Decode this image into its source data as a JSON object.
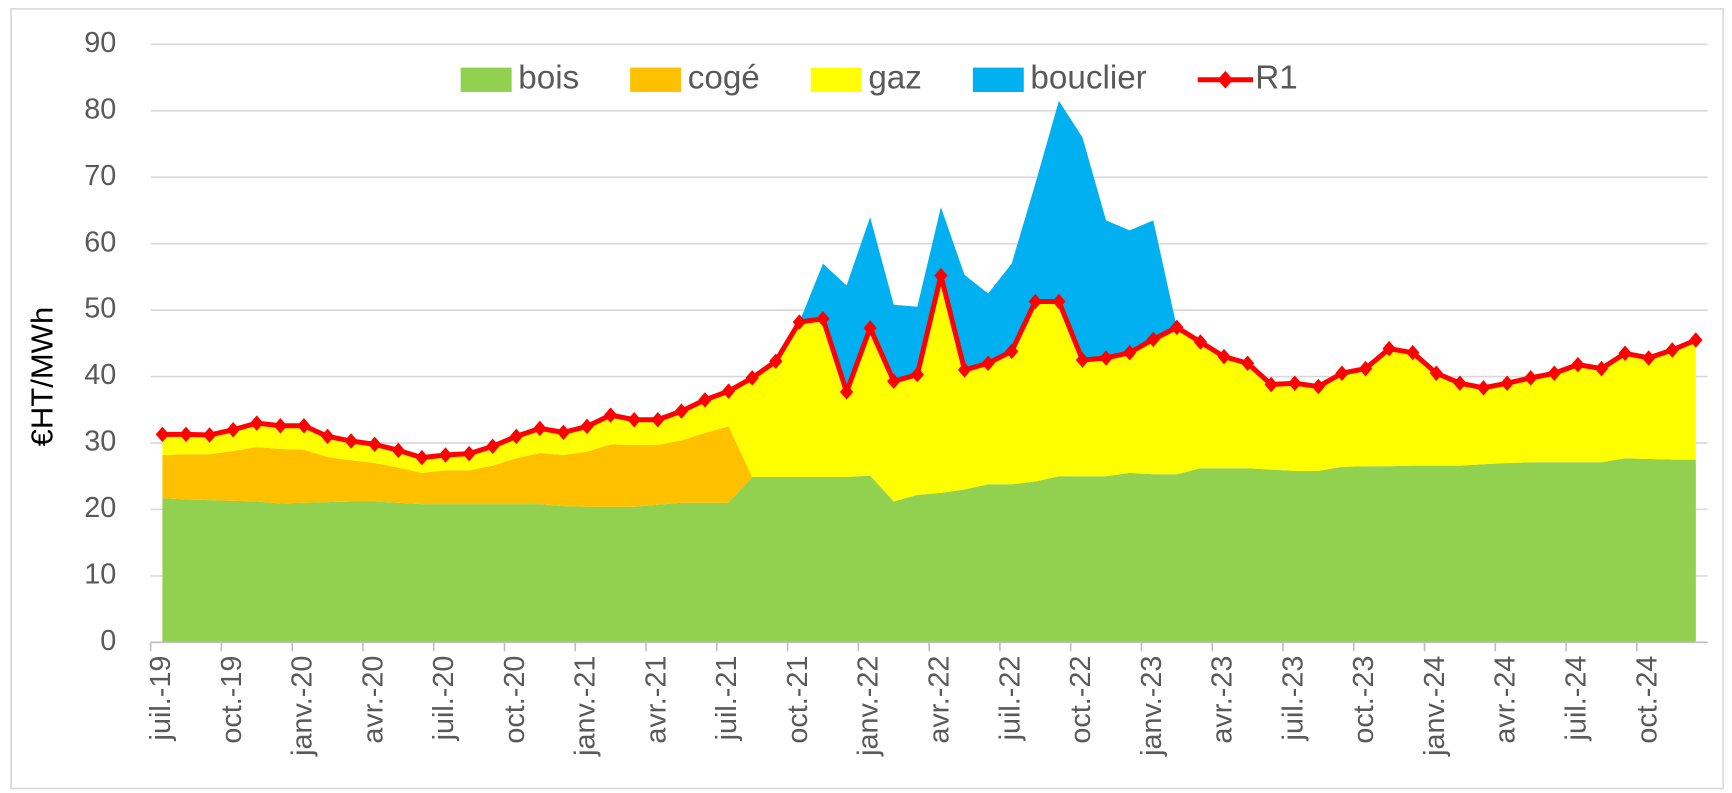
{
  "chart_data": {
    "type": "area",
    "ylabel": "€HT/MWh",
    "categories": [
      "juil.-19",
      null,
      null,
      "oct.-19",
      null,
      null,
      "janv.-20",
      null,
      null,
      "avr.-20",
      null,
      null,
      "juil.-20",
      null,
      null,
      "oct.-20",
      null,
      null,
      "janv.-21",
      null,
      null,
      "avr.-21",
      null,
      null,
      "juil.-21",
      null,
      null,
      "oct.-21",
      null,
      null,
      "janv.-22",
      null,
      null,
      "avr.-22",
      null,
      null,
      "juil.-22",
      null,
      null,
      "oct.-22",
      null,
      null,
      "janv.-23",
      null,
      null,
      "avr.-23",
      null,
      null,
      "juil.-23",
      null,
      null,
      "oct.-23",
      null,
      null,
      "janv.-24",
      null,
      null,
      "avr.-24",
      null,
      null,
      "juil.-24",
      null,
      null,
      "oct.-24",
      null,
      null
    ],
    "series": [
      {
        "name": "bois",
        "color": "#92d050",
        "values": [
          21.7,
          21.5,
          21.4,
          21.3,
          21.2,
          20.9,
          21.0,
          21.1,
          21.2,
          21.2,
          21.0,
          20.8,
          20.8,
          20.8,
          20.8,
          20.8,
          20.8,
          20.5,
          20.4,
          20.4,
          20.4,
          20.7,
          21.0,
          21.0,
          21.0,
          24.9,
          24.9,
          24.9,
          24.9,
          24.9,
          25.1,
          21.2,
          22.2,
          22.5,
          23.0,
          23.8,
          23.8,
          24.2,
          25.0,
          25.0,
          25.0,
          25.5,
          25.3,
          25.3,
          26.2,
          26.2,
          26.2,
          26.0,
          25.8,
          25.8,
          26.4,
          26.5,
          26.5,
          26.6,
          26.6,
          26.6,
          26.8,
          27.0,
          27.1,
          27.1,
          27.1,
          27.1,
          27.7,
          27.6,
          27.5,
          27.5
        ]
      },
      {
        "name": "cogé",
        "color": "#ffc000",
        "values": [
          6.5,
          6.8,
          6.9,
          7.5,
          8.2,
          8.2,
          8.0,
          6.8,
          6.2,
          5.8,
          5.3,
          4.7,
          5.1,
          5.1,
          5.8,
          6.9,
          7.7,
          7.7,
          8.3,
          9.4,
          9.3,
          9.0,
          9.4,
          10.5,
          11.5,
          0,
          0,
          0,
          0,
          0,
          0,
          0,
          0,
          0,
          0,
          0,
          0,
          0,
          0,
          0,
          0,
          0,
          0,
          0,
          0,
          0,
          0,
          0,
          0,
          0,
          0,
          0,
          0,
          0,
          0,
          0,
          0,
          0,
          0,
          0,
          0,
          0,
          0,
          0,
          0,
          0
        ]
      },
      {
        "name": "gaz",
        "color": "#ffff00",
        "values": [
          3.1,
          3.0,
          2.9,
          3.2,
          3.6,
          3.5,
          3.6,
          3.1,
          2.9,
          2.8,
          2.6,
          2.3,
          2.3,
          2.5,
          2.9,
          3.3,
          3.7,
          3.4,
          3.8,
          4.4,
          3.8,
          3.8,
          4.4,
          5.0,
          5.3,
          14.9,
          17.4,
          23.3,
          23.8,
          12.8,
          22.2,
          18.1,
          18.1,
          32.7,
          18.0,
          18.2,
          20.0,
          27.1,
          26.3,
          17.5,
          17.8,
          18.1,
          20.3,
          22.1,
          19.0,
          16.8,
          15.8,
          12.8,
          13.2,
          12.7,
          14.1,
          14.7,
          17.7,
          17.0,
          13.9,
          12.4,
          11.5,
          12.0,
          12.7,
          13.4,
          14.7,
          14.1,
          15.8,
          15.2,
          16.5,
          18.0
        ]
      },
      {
        "name": "bouclier",
        "color": "#00b0f0",
        "values": [
          0,
          0,
          0,
          0,
          0,
          0,
          0,
          0,
          0,
          0,
          0,
          0,
          0,
          0,
          0,
          0,
          0,
          0,
          0,
          0,
          0,
          0,
          0,
          0,
          0,
          0,
          0,
          0,
          8.3,
          16.0,
          16.7,
          11.5,
          10.2,
          10.3,
          14.3,
          10.5,
          13.2,
          17.7,
          30.2,
          33.5,
          20.7,
          18.4,
          17.9,
          0,
          0,
          0,
          0,
          0,
          0,
          0,
          0,
          0,
          0,
          0,
          0,
          0,
          0,
          0,
          0,
          0,
          0,
          0,
          0,
          0,
          0,
          0
        ]
      },
      {
        "name": "R1",
        "color": "#ff0000",
        "type": "line",
        "values": [
          31.3,
          31.3,
          31.2,
          32.0,
          33.0,
          32.6,
          32.6,
          31.0,
          30.3,
          29.8,
          28.9,
          27.8,
          28.2,
          28.4,
          29.5,
          31.0,
          32.2,
          31.6,
          32.5,
          34.2,
          33.5,
          33.5,
          34.8,
          36.5,
          37.8,
          39.8,
          42.3,
          48.2,
          48.7,
          37.7,
          47.3,
          39.3,
          40.3,
          55.2,
          41.0,
          42.0,
          43.8,
          51.3,
          51.3,
          42.5,
          42.8,
          43.6,
          45.6,
          47.4,
          45.2,
          43.0,
          42.0,
          38.8,
          39.0,
          38.5,
          40.5,
          41.2,
          44.2,
          43.6,
          40.5,
          39.0,
          38.3,
          39.0,
          39.8,
          40.5,
          41.8,
          41.2,
          43.5,
          42.8,
          44.0,
          45.5
        ]
      }
    ],
    "ylim": [
      0,
      90
    ],
    "yticks": [
      0,
      10,
      20,
      30,
      40,
      50,
      60,
      70,
      80,
      90
    ],
    "grid": true,
    "legend": "top"
  }
}
